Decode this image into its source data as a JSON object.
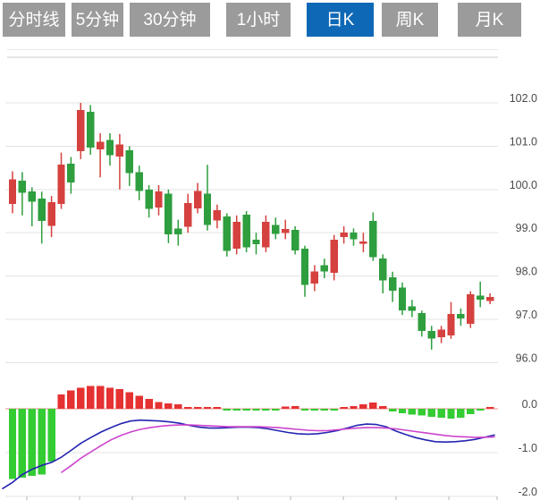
{
  "tabs": {
    "items": [
      {
        "label": "分时线"
      },
      {
        "label": "5分钟"
      },
      {
        "label": "30分钟"
      },
      {
        "label": "1小时"
      },
      {
        "label": "日K"
      },
      {
        "label": "周K"
      },
      {
        "label": "月K"
      }
    ],
    "active_index": 4
  },
  "colors": {
    "up": "#d5413e",
    "down": "#2e9e3e",
    "macd_up": "#e53131",
    "macd_down": "#33cc33",
    "dif_line": "#2424b0",
    "dea_line": "#cc44cc",
    "zero_line": "#f08c8c",
    "grid": "#e3e3e3",
    "grid_dark": "#c9c9c9",
    "separator": "#e9e9e9",
    "tick": "#b5b5b5",
    "axis_text": "#4a4a4a",
    "tab_bg": "#9b9b9b",
    "tab_active_bg": "#0f68b6",
    "tab_text": "#ffffff"
  },
  "chart_data": {
    "type": "candlestick",
    "title": "",
    "legend": [],
    "grid": true,
    "panes": [
      "price-kline",
      "macd-indicator"
    ],
    "price_axis": {
      "side": "right",
      "min": 96,
      "max": 103,
      "labels": [
        {
          "text": "102.0",
          "v": 102
        },
        {
          "text": "101.0",
          "v": 101
        },
        {
          "text": "100.0",
          "v": 100
        },
        {
          "text": "99.0",
          "v": 99
        },
        {
          "text": "98.0",
          "v": 98
        },
        {
          "text": "97.0",
          "v": 97
        },
        {
          "text": "96.0",
          "v": 96
        }
      ]
    },
    "macd_axis": {
      "side": "right",
      "min": -2,
      "max": 0.6,
      "labels": [
        {
          "text": "0.0",
          "v": 0
        },
        {
          "text": "-1.0",
          "v": -1
        },
        {
          "text": "-2.0",
          "v": -2
        }
      ]
    },
    "candles_ohlc_format": [
      "open",
      "high",
      "low",
      "close"
    ],
    "candles": [
      [
        99.67,
        100.42,
        99.45,
        100.23
      ],
      [
        100.2,
        100.4,
        99.4,
        99.92
      ],
      [
        99.95,
        100.05,
        99.15,
        99.72
      ],
      [
        99.79,
        99.95,
        98.75,
        99.27
      ],
      [
        99.16,
        99.85,
        98.9,
        99.71
      ],
      [
        99.67,
        100.85,
        99.55,
        100.57
      ],
      [
        100.6,
        100.75,
        99.9,
        100.16
      ],
      [
        100.88,
        102.0,
        100.7,
        101.83
      ],
      [
        101.79,
        101.95,
        100.8,
        100.97
      ],
      [
        100.93,
        101.3,
        100.28,
        101.1
      ],
      [
        101.14,
        101.3,
        100.55,
        100.79
      ],
      [
        100.76,
        101.28,
        100.0,
        101.04
      ],
      [
        100.9,
        101.0,
        100.08,
        100.38
      ],
      [
        100.4,
        100.55,
        99.75,
        99.97
      ],
      [
        100.0,
        100.1,
        99.35,
        99.55
      ],
      [
        99.58,
        100.1,
        99.4,
        99.95
      ],
      [
        99.9,
        100.0,
        98.76,
        98.96
      ],
      [
        99.1,
        99.3,
        98.7,
        98.96
      ],
      [
        99.14,
        99.9,
        99.0,
        99.69
      ],
      [
        99.56,
        100.15,
        99.45,
        99.97
      ],
      [
        99.9,
        100.57,
        99.05,
        99.18
      ],
      [
        99.28,
        99.65,
        99.1,
        99.52
      ],
      [
        99.38,
        99.45,
        98.45,
        98.58
      ],
      [
        98.63,
        99.4,
        98.5,
        99.25
      ],
      [
        99.42,
        99.5,
        98.55,
        98.66
      ],
      [
        98.84,
        99.0,
        98.5,
        98.74
      ],
      [
        98.66,
        99.4,
        98.55,
        99.25
      ],
      [
        99.18,
        99.35,
        98.85,
        98.97
      ],
      [
        98.99,
        99.3,
        98.85,
        99.09
      ],
      [
        99.07,
        99.15,
        98.5,
        98.59
      ],
      [
        98.63,
        98.7,
        97.52,
        97.8
      ],
      [
        97.83,
        98.25,
        97.65,
        98.11
      ],
      [
        98.25,
        98.4,
        97.95,
        98.11
      ],
      [
        98.07,
        98.95,
        97.9,
        98.84
      ],
      [
        98.9,
        99.15,
        98.75,
        99.0
      ],
      [
        99.0,
        99.1,
        98.7,
        98.85
      ],
      [
        98.75,
        99.0,
        98.55,
        98.8
      ],
      [
        99.27,
        99.47,
        98.35,
        98.44
      ],
      [
        98.4,
        98.5,
        97.6,
        97.9
      ],
      [
        97.97,
        98.1,
        97.4,
        97.66
      ],
      [
        97.73,
        97.85,
        97.1,
        97.21
      ],
      [
        97.3,
        97.45,
        97.05,
        97.2
      ],
      [
        97.14,
        97.2,
        96.6,
        96.73
      ],
      [
        96.73,
        96.85,
        96.3,
        96.56
      ],
      [
        96.59,
        96.85,
        96.45,
        96.76
      ],
      [
        96.63,
        97.4,
        96.55,
        97.12
      ],
      [
        97.12,
        97.25,
        96.85,
        97.02
      ],
      [
        96.9,
        97.65,
        96.8,
        97.58
      ],
      [
        97.55,
        97.87,
        97.28,
        97.45
      ],
      [
        97.42,
        97.6,
        97.35,
        97.52
      ]
    ],
    "macd": {
      "histogram": [
        -1.6,
        -1.57,
        -1.53,
        -1.5,
        -1.2,
        0.33,
        0.42,
        0.48,
        0.52,
        0.52,
        0.48,
        0.45,
        0.38,
        0.3,
        0.22,
        0.15,
        0.12,
        0.1,
        0.04,
        0.03,
        0.02,
        0.01,
        -0.03,
        -0.04,
        -0.04,
        -0.03,
        -0.04,
        -0.03,
        0.05,
        0.06,
        -0.03,
        -0.04,
        -0.04,
        -0.03,
        0.04,
        0.06,
        0.1,
        0.14,
        0.06,
        -0.06,
        -0.1,
        -0.13,
        -0.15,
        -0.18,
        -0.2,
        -0.22,
        -0.2,
        -0.12,
        -0.04,
        0.03
      ],
      "dif_points": [
        [
          3,
          -1.82
        ],
        [
          14,
          -1.68
        ],
        [
          25,
          -1.5
        ],
        [
          36,
          -1.38
        ],
        [
          47,
          -1.29
        ],
        [
          58,
          -1.22
        ],
        [
          69,
          -1.1
        ],
        [
          80,
          -0.94
        ],
        [
          91,
          -0.78
        ],
        [
          102,
          -0.65
        ],
        [
          113,
          -0.53
        ],
        [
          124,
          -0.43
        ],
        [
          135,
          -0.34
        ],
        [
          146,
          -0.28
        ],
        [
          157,
          -0.26
        ],
        [
          168,
          -0.27
        ],
        [
          179,
          -0.28
        ],
        [
          190,
          -0.3
        ],
        [
          201,
          -0.33
        ],
        [
          212,
          -0.38
        ],
        [
          223,
          -0.42
        ],
        [
          234,
          -0.44
        ],
        [
          245,
          -0.44
        ],
        [
          256,
          -0.43
        ],
        [
          267,
          -0.42
        ],
        [
          278,
          -0.42
        ],
        [
          289,
          -0.43
        ],
        [
          300,
          -0.46
        ],
        [
          311,
          -0.5
        ],
        [
          322,
          -0.54
        ],
        [
          333,
          -0.57
        ],
        [
          344,
          -0.58
        ],
        [
          355,
          -0.57
        ],
        [
          366,
          -0.54
        ],
        [
          377,
          -0.5
        ],
        [
          388,
          -0.44
        ],
        [
          399,
          -0.38
        ],
        [
          410,
          -0.35
        ],
        [
          421,
          -0.36
        ],
        [
          432,
          -0.41
        ],
        [
          443,
          -0.51
        ],
        [
          454,
          -0.59
        ],
        [
          465,
          -0.66
        ],
        [
          476,
          -0.71
        ],
        [
          487,
          -0.75
        ],
        [
          498,
          -0.76
        ],
        [
          509,
          -0.75
        ],
        [
          520,
          -0.73
        ],
        [
          531,
          -0.7
        ],
        [
          542,
          -0.65
        ],
        [
          553,
          -0.6
        ]
      ],
      "dea_points": [
        [
          69,
          -1.45
        ],
        [
          80,
          -1.29
        ],
        [
          91,
          -1.12
        ],
        [
          102,
          -0.98
        ],
        [
          113,
          -0.84
        ],
        [
          124,
          -0.71
        ],
        [
          135,
          -0.61
        ],
        [
          146,
          -0.53
        ],
        [
          157,
          -0.47
        ],
        [
          168,
          -0.43
        ],
        [
          179,
          -0.4
        ],
        [
          190,
          -0.38
        ],
        [
          201,
          -0.37
        ],
        [
          212,
          -0.37
        ],
        [
          223,
          -0.38
        ],
        [
          234,
          -0.39
        ],
        [
          245,
          -0.4
        ],
        [
          256,
          -0.41
        ],
        [
          267,
          -0.41
        ],
        [
          278,
          -0.41
        ],
        [
          289,
          -0.41
        ],
        [
          300,
          -0.42
        ],
        [
          311,
          -0.43
        ],
        [
          322,
          -0.45
        ],
        [
          333,
          -0.47
        ],
        [
          344,
          -0.49
        ],
        [
          355,
          -0.5
        ],
        [
          366,
          -0.5
        ],
        [
          377,
          -0.48
        ],
        [
          388,
          -0.46
        ],
        [
          399,
          -0.44
        ],
        [
          410,
          -0.43
        ],
        [
          421,
          -0.43
        ],
        [
          432,
          -0.44
        ],
        [
          443,
          -0.46
        ],
        [
          454,
          -0.49
        ],
        [
          465,
          -0.52
        ],
        [
          476,
          -0.55
        ],
        [
          487,
          -0.58
        ],
        [
          498,
          -0.61
        ],
        [
          509,
          -0.63
        ],
        [
          520,
          -0.64
        ],
        [
          531,
          -0.65
        ],
        [
          542,
          -0.65
        ],
        [
          553,
          -0.64
        ]
      ]
    },
    "x_ticks": [
      30,
      89,
      148,
      207,
      266,
      325,
      384,
      443,
      502,
      556
    ]
  }
}
